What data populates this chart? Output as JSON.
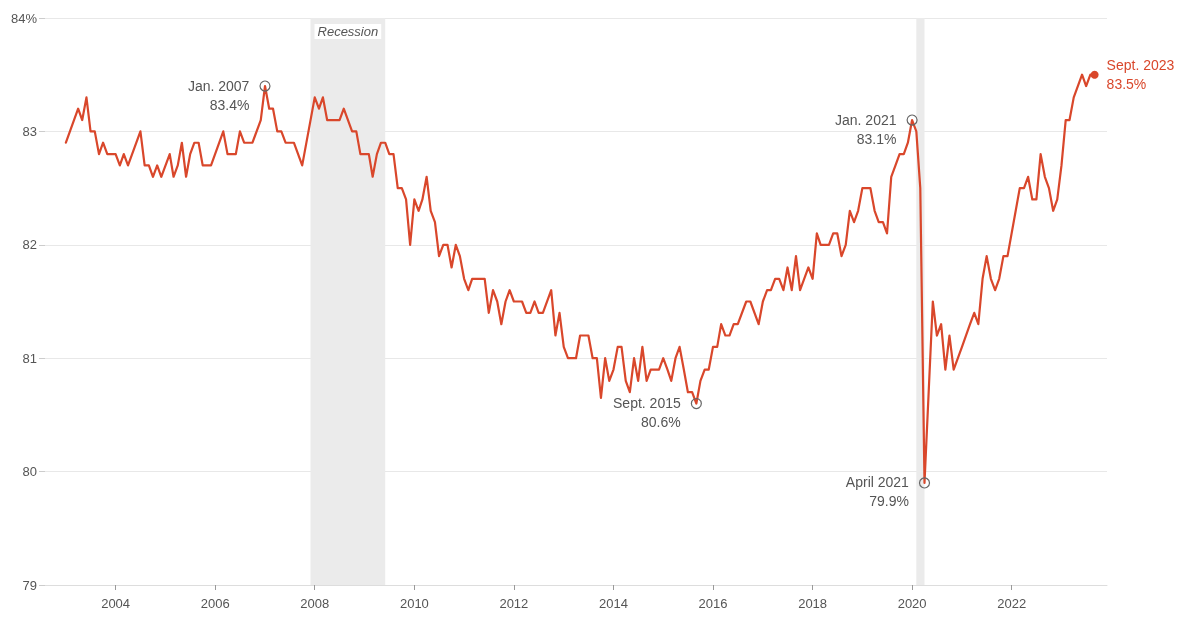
{
  "chart_data": {
    "type": "line",
    "x": [
      "2003-01",
      "2003-04",
      "2003-05",
      "2003-06",
      "2003-07",
      "2003-08",
      "2003-09",
      "2003-10",
      "2003-11",
      "2004-01",
      "2004-02",
      "2004-03",
      "2004-04",
      "2004-07",
      "2004-08",
      "2004-09",
      "2004-10",
      "2004-11",
      "2004-12",
      "2005-02",
      "2005-03",
      "2005-04",
      "2005-05",
      "2005-06",
      "2005-07",
      "2005-08",
      "2005-09",
      "2005-10",
      "2005-12",
      "2006-03",
      "2006-04",
      "2006-06",
      "2006-07",
      "2006-08",
      "2006-10",
      "2006-12",
      "2007-01",
      "2007-02",
      "2007-03",
      "2007-04",
      "2007-05",
      "2007-06",
      "2007-08",
      "2007-10",
      "2008-01",
      "2008-02",
      "2008-03",
      "2008-04",
      "2008-07",
      "2008-08",
      "2008-10",
      "2008-11",
      "2008-12",
      "2009-02",
      "2009-03",
      "2009-04",
      "2009-05",
      "2009-06",
      "2009-07",
      "2009-08",
      "2009-09",
      "2009-10",
      "2009-11",
      "2009-12",
      "2010-01",
      "2010-02",
      "2010-03",
      "2010-04",
      "2010-05",
      "2010-06",
      "2010-07",
      "2010-08",
      "2010-09",
      "2010-10",
      "2010-11",
      "2010-12",
      "2011-01",
      "2011-02",
      "2011-03",
      "2011-06",
      "2011-07",
      "2011-08",
      "2011-09",
      "2011-10",
      "2011-11",
      "2011-12",
      "2012-01",
      "2012-03",
      "2012-04",
      "2012-05",
      "2012-06",
      "2012-07",
      "2012-08",
      "2012-10",
      "2012-11",
      "2012-12",
      "2013-01",
      "2013-02",
      "2013-04",
      "2013-05",
      "2013-07",
      "2013-08",
      "2013-09",
      "2013-10",
      "2013-11",
      "2013-12",
      "2014-01",
      "2014-02",
      "2014-03",
      "2014-04",
      "2014-05",
      "2014-06",
      "2014-07",
      "2014-08",
      "2014-09",
      "2014-10",
      "2014-12",
      "2015-01",
      "2015-02",
      "2015-03",
      "2015-04",
      "2015-05",
      "2015-06",
      "2015-07",
      "2015-08",
      "2015-09",
      "2015-10",
      "2015-11",
      "2015-12",
      "2016-01",
      "2016-02",
      "2016-03",
      "2016-04",
      "2016-05",
      "2016-06",
      "2016-07",
      "2016-09",
      "2016-10",
      "2016-12",
      "2017-01",
      "2017-02",
      "2017-03",
      "2017-04",
      "2017-05",
      "2017-06",
      "2017-07",
      "2017-08",
      "2017-09",
      "2017-10",
      "2017-12",
      "2018-01",
      "2018-02",
      "2018-03",
      "2018-05",
      "2018-06",
      "2018-07",
      "2018-08",
      "2018-09",
      "2018-10",
      "2018-11",
      "2018-12",
      "2019-01",
      "2019-03",
      "2019-04",
      "2019-05",
      "2019-06",
      "2019-07",
      "2019-08",
      "2019-09",
      "2019-10",
      "2019-11",
      "2019-12",
      "2020-01",
      "2020-02",
      "2020-03",
      "2020-04",
      "2020-06",
      "2020-07",
      "2020-08",
      "2020-09",
      "2020-10",
      "2020-11",
      "2021-01",
      "2021-03",
      "2021-04",
      "2021-05",
      "2021-06",
      "2021-07",
      "2021-08",
      "2021-09",
      "2021-10",
      "2021-11",
      "2021-12",
      "2022-03",
      "2022-04",
      "2022-05",
      "2022-06",
      "2022-07",
      "2022-08",
      "2022-09",
      "2022-10",
      "2022-11",
      "2022-12",
      "2023-01",
      "2023-02",
      "2023-03",
      "2023-04",
      "2023-06",
      "2023-07",
      "2023-08",
      "2023-09"
    ],
    "series": [
      {
        "color": "#d9472b",
        "values": [
          82.9,
          83.2,
          83.1,
          83.3,
          83.0,
          83.0,
          82.8,
          82.9,
          82.8,
          82.8,
          82.7,
          82.8,
          82.7,
          83.0,
          82.7,
          82.7,
          82.6,
          82.7,
          82.6,
          82.8,
          82.6,
          82.7,
          82.9,
          82.6,
          82.8,
          82.9,
          82.9,
          82.7,
          82.7,
          83.0,
          82.8,
          82.8,
          83.0,
          82.9,
          82.9,
          83.1,
          83.4,
          83.2,
          83.2,
          83.0,
          83.0,
          82.9,
          82.9,
          82.7,
          83.3,
          83.2,
          83.3,
          83.1,
          83.1,
          83.2,
          83.0,
          83.0,
          82.8,
          82.8,
          82.6,
          82.8,
          82.9,
          82.9,
          82.8,
          82.8,
          82.5,
          82.5,
          82.4,
          82.0,
          82.4,
          82.3,
          82.4,
          82.6,
          82.3,
          82.2,
          81.9,
          82.0,
          82.0,
          81.8,
          82.0,
          81.9,
          81.7,
          81.6,
          81.7,
          81.7,
          81.4,
          81.6,
          81.5,
          81.3,
          81.5,
          81.6,
          81.5,
          81.5,
          81.4,
          81.4,
          81.5,
          81.4,
          81.4,
          81.6,
          81.2,
          81.4,
          81.1,
          81.0,
          81.0,
          81.2,
          81.2,
          81.0,
          81.0,
          80.65,
          81.0,
          80.8,
          80.9,
          81.1,
          81.1,
          80.8,
          80.7,
          81.0,
          80.8,
          81.1,
          80.8,
          80.9,
          80.9,
          81.0,
          80.9,
          80.8,
          81.0,
          81.1,
          80.9,
          80.7,
          80.7,
          80.6,
          80.8,
          80.9,
          80.9,
          81.1,
          81.1,
          81.3,
          81.2,
          81.2,
          81.3,
          81.3,
          81.5,
          81.5,
          81.3,
          81.5,
          81.6,
          81.6,
          81.7,
          81.7,
          81.6,
          81.8,
          81.6,
          81.9,
          81.6,
          81.8,
          81.7,
          82.1,
          82.0,
          82.0,
          82.1,
          82.1,
          81.9,
          82.0,
          82.3,
          82.2,
          82.3,
          82.5,
          82.5,
          82.3,
          82.2,
          82.2,
          82.1,
          82.6,
          82.7,
          82.8,
          82.8,
          82.9,
          83.1,
          83.0,
          82.5,
          79.9,
          81.5,
          81.2,
          81.3,
          80.9,
          81.2,
          80.9,
          81.1,
          81.3,
          81.4,
          81.3,
          81.7,
          81.9,
          81.7,
          81.6,
          81.7,
          81.9,
          81.9,
          82.5,
          82.5,
          82.6,
          82.4,
          82.4,
          82.8,
          82.6,
          82.5,
          82.3,
          82.4,
          82.7,
          83.1,
          83.1,
          83.3,
          83.5,
          83.4,
          83.5,
          83.5
        ]
      }
    ],
    "xlim": [
      "2002-08",
      "2023-12"
    ],
    "xticks": [
      {
        "value": "2004",
        "label": "2004"
      },
      {
        "value": "2006",
        "label": "2006"
      },
      {
        "value": "2008",
        "label": "2008"
      },
      {
        "value": "2010",
        "label": "2010"
      },
      {
        "value": "2012",
        "label": "2012"
      },
      {
        "value": "2014",
        "label": "2014"
      },
      {
        "value": "2016",
        "label": "2016"
      },
      {
        "value": "2018",
        "label": "2018"
      },
      {
        "value": "2020",
        "label": "2020"
      },
      {
        "value": "2022",
        "label": "2022"
      }
    ],
    "ylim": [
      79,
      84
    ],
    "yticks": [
      79,
      80,
      81,
      82,
      83,
      {
        "value": 84,
        "label": "84%"
      }
    ],
    "grid": "y",
    "marker": "none",
    "bands": [
      {
        "axis": "x",
        "from": "2007-12",
        "to": "2009-06",
        "label": "Recession",
        "color": "#ebebeb"
      },
      {
        "axis": "x",
        "from": "2020-02",
        "to": "2020-04",
        "color": "#ebebeb"
      }
    ],
    "annotations": [
      {
        "text": "Jan. 2007\n83.4%",
        "x": "2007-01",
        "y": 83.4
      },
      {
        "text": "Sept. 2015\n80.6%",
        "x": "2015-09",
        "y": 80.6
      },
      {
        "text": "Jan. 2021\n83.1%",
        "x": "2020-01",
        "y": 83.1
      },
      {
        "text": "April 2021\n79.9%",
        "x": "2020-04",
        "y": 79.9
      },
      {
        "text": "Sept. 2023\n83.5%",
        "x": "2023-09",
        "y": 83.5
      }
    ]
  }
}
